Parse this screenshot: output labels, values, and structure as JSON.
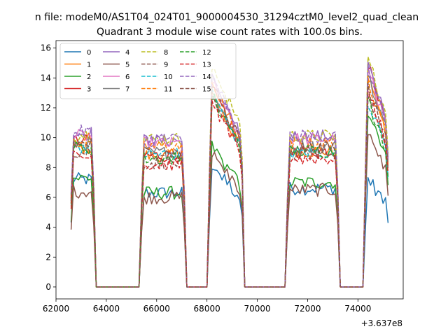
{
  "chart_data": {
    "type": "line",
    "suptitle": "n file: modeM0/AS1T04_024T01_9000004530_31294cztM0_level2_quad_clean",
    "title": "Quadrant 3 module wise count rates with 100.0s bins.",
    "xlabel": "",
    "ylabel": "",
    "x_offset_label": "+3.637e8",
    "xlim": [
      62000,
      75800
    ],
    "ylim": [
      -0.8,
      16.5
    ],
    "x_ticks": [
      62000,
      64000,
      66000,
      68000,
      70000,
      72000,
      74000
    ],
    "y_ticks": [
      0,
      2,
      4,
      6,
      8,
      10,
      12,
      14,
      16
    ],
    "grid": false,
    "legend_placement": "top-left",
    "legend_columns": 4,
    "segments": [
      {
        "start": 62600,
        "end": 63500
      },
      {
        "start": 65400,
        "end": 67100
      },
      {
        "start": 68100,
        "end": 69400
      },
      {
        "start": 71200,
        "end": 73200
      },
      {
        "start": 74300,
        "end": 75200
      }
    ],
    "series": [
      {
        "name": "0",
        "color": "#1f77b4",
        "style": "solid",
        "levels": [
          7.2,
          6.3,
          7.3,
          6.6,
          6.6
        ]
      },
      {
        "name": "1",
        "color": "#ff7f0e",
        "style": "solid",
        "levels": [
          9.3,
          8.8,
          11.5,
          9.1,
          12.5
        ]
      },
      {
        "name": "2",
        "color": "#2ca02c",
        "style": "solid",
        "levels": [
          7.3,
          6.3,
          8.3,
          7.0,
          10.5
        ]
      },
      {
        "name": "3",
        "color": "#d62728",
        "style": "solid",
        "levels": [
          9.8,
          8.8,
          11.8,
          9.1,
          13.4
        ]
      },
      {
        "name": "4",
        "color": "#9467bd",
        "style": "solid",
        "levels": [
          10.3,
          9.8,
          12.4,
          10.1,
          13.4
        ]
      },
      {
        "name": "5",
        "color": "#8c564b",
        "style": "solid",
        "levels": [
          6.4,
          6.0,
          7.9,
          6.5,
          9.4
        ]
      },
      {
        "name": "6",
        "color": "#e377c2",
        "style": "solid",
        "levels": [
          10.1,
          9.6,
          12.2,
          9.9,
          13.1
        ]
      },
      {
        "name": "7",
        "color": "#7f7f7f",
        "style": "solid",
        "levels": [
          9.6,
          9.0,
          11.7,
          9.4,
          12.7
        ]
      },
      {
        "name": "8",
        "color": "#bcbd22",
        "style": "dashed",
        "levels": [
          10.2,
          9.9,
          13.2,
          10.1,
          13.8
        ]
      },
      {
        "name": "9",
        "color": "#8c564b",
        "style": "dashed",
        "levels": [
          9.0,
          8.3,
          11.2,
          8.9,
          11.4
        ]
      },
      {
        "name": "10",
        "color": "#17becf",
        "style": "dashed",
        "levels": [
          9.4,
          8.9,
          11.6,
          9.0,
          11.3
        ]
      },
      {
        "name": "11",
        "color": "#ff7f0e",
        "style": "dashed",
        "levels": [
          9.9,
          9.4,
          12.0,
          9.6,
          12.5
        ]
      },
      {
        "name": "12",
        "color": "#2ca02c",
        "style": "dashed",
        "levels": [
          9.3,
          8.6,
          11.4,
          9.1,
          11.2
        ]
      },
      {
        "name": "13",
        "color": "#d62728",
        "style": "dashed",
        "levels": [
          8.7,
          8.2,
          10.9,
          8.6,
          11.8
        ]
      },
      {
        "name": "14",
        "color": "#9467bd",
        "style": "dashed",
        "levels": [
          10.4,
          9.9,
          12.5,
          10.1,
          13.0
        ]
      },
      {
        "name": "15",
        "color": "#8c564b",
        "style": "dashed",
        "levels": [
          9.6,
          9.0,
          11.9,
          9.3,
          12.1
        ]
      }
    ]
  }
}
